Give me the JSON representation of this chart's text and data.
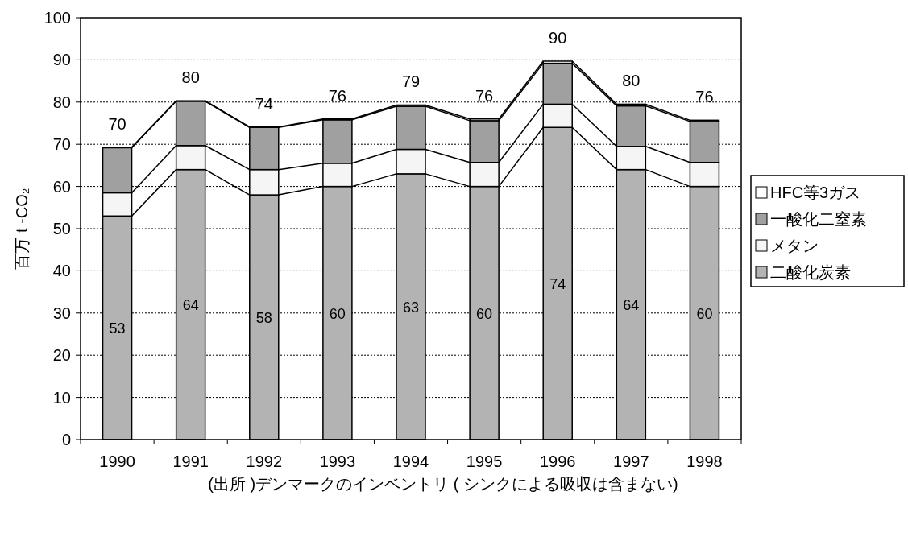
{
  "chart_data": {
    "type": "bar",
    "stacked": true,
    "ylabel": "百万 t -CO₂",
    "categories": [
      "1990",
      "1991",
      "1992",
      "1993",
      "1994",
      "1995",
      "1996",
      "1997",
      "1998"
    ],
    "series": [
      {
        "name": "二酸化炭素",
        "color": "#b3b3b3",
        "values": [
          53,
          64,
          58,
          60,
          63,
          60,
          74,
          64,
          60
        ],
        "value_labels": [
          "53",
          "64",
          "58",
          "60",
          "63",
          "60",
          "74",
          "64",
          "60"
        ]
      },
      {
        "name": "メタン",
        "color": "#f5f5f5",
        "values": [
          5.5,
          5.7,
          6,
          5.5,
          5.8,
          5.7,
          5.5,
          5.5,
          5.7
        ]
      },
      {
        "name": "一酸化二窒素",
        "color": "#a0a0a0",
        "values": [
          10.7,
          10.5,
          10,
          10.3,
          10.2,
          9.9,
          9.7,
          9.6,
          9.7
        ]
      },
      {
        "name": "HFC等3ガス",
        "color": "#ffffff",
        "values": [
          0.1,
          0.1,
          0.1,
          0.2,
          0.3,
          0.4,
          0.5,
          0.4,
          0.3
        ]
      }
    ],
    "totals": [
      "70",
      "80",
      "74",
      "76",
      "79",
      "76",
      "90",
      "80",
      "76"
    ],
    "ylim": [
      0,
      100
    ],
    "yticks": [
      0,
      10,
      20,
      30,
      40,
      50,
      60,
      70,
      80,
      90,
      100
    ],
    "grid": "y",
    "legend": "right",
    "annotations": [
      "(出所 )デンマークのインベントリ ( シンクによる吸収は含まない)"
    ]
  }
}
